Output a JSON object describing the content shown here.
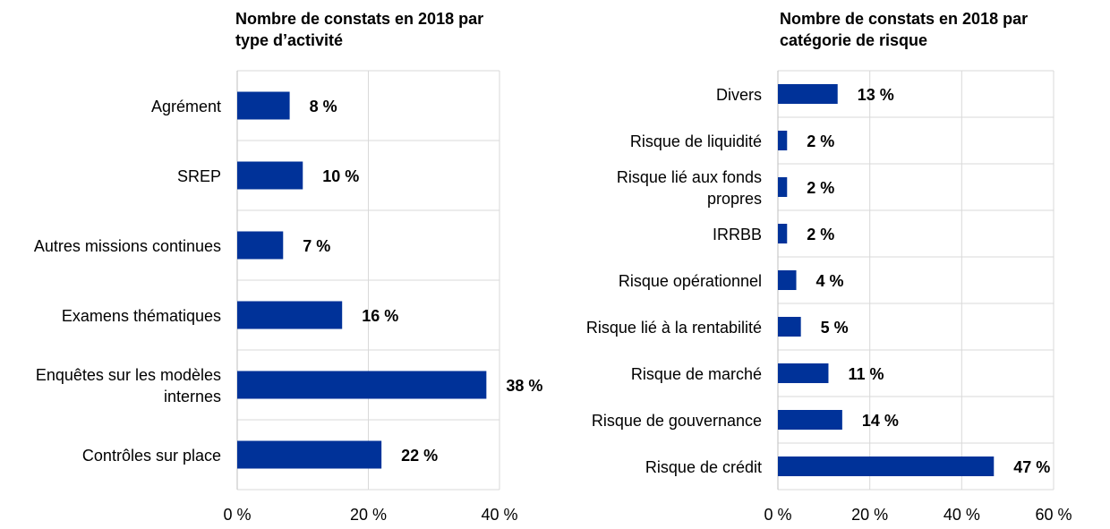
{
  "chart_data": [
    {
      "type": "bar",
      "orientation": "horizontal",
      "title_lines": [
        "Nombre de constats en 2018 par",
        "type d’activité"
      ],
      "categories": [
        "Agrément",
        "SREP",
        "Autres missions continues",
        "Examens thématiques",
        "Enquêtes sur les modèles internes",
        "Contrôles sur place"
      ],
      "category_lines": [
        [
          "Agrément"
        ],
        [
          "SREP"
        ],
        [
          "Autres missions continues"
        ],
        [
          "Examens thématiques"
        ],
        [
          "Enquêtes sur les modèles",
          "internes"
        ],
        [
          "Contrôles sur place"
        ]
      ],
      "values": [
        8,
        10,
        7,
        16,
        38,
        22
      ],
      "value_labels": [
        "8 %",
        "10 %",
        "7 %",
        "16 %",
        "38 %",
        "22 %"
      ],
      "xlim": [
        0,
        40
      ],
      "ticks": [
        0,
        20,
        40
      ],
      "tick_labels": [
        "0 %",
        "20 %",
        "40 %"
      ],
      "color": "#003299",
      "grid": true
    },
    {
      "type": "bar",
      "orientation": "horizontal",
      "title_lines": [
        "Nombre de constats en 2018 par",
        "catégorie de risque"
      ],
      "categories": [
        "Divers",
        "Risque de liquidité",
        "Risque lié aux fonds propres",
        "IRRBB",
        "Risque opérationnel",
        "Risque lié à la rentabilité",
        "Risque de marché",
        "Risque de gouvernance",
        "Risque de crédit"
      ],
      "category_lines": [
        [
          "Divers"
        ],
        [
          "Risque de liquidité"
        ],
        [
          "Risque lié aux fonds",
          "propres"
        ],
        [
          "IRRBB"
        ],
        [
          "Risque opérationnel"
        ],
        [
          "Risque lié à la rentabilité"
        ],
        [
          "Risque de marché"
        ],
        [
          "Risque de gouvernance"
        ],
        [
          "Risque de crédit"
        ]
      ],
      "values": [
        13,
        2,
        2,
        2,
        4,
        5,
        11,
        14,
        47
      ],
      "value_labels": [
        "13 %",
        "2 %",
        "2 %",
        "2 %",
        "4 %",
        "5 %",
        "11 %",
        "14 %",
        "47 %"
      ],
      "xlim": [
        0,
        60
      ],
      "ticks": [
        0,
        20,
        40,
        60
      ],
      "tick_labels": [
        "0 %",
        "20 %",
        "40 %",
        "60 %"
      ],
      "color": "#003299",
      "grid": true
    }
  ]
}
